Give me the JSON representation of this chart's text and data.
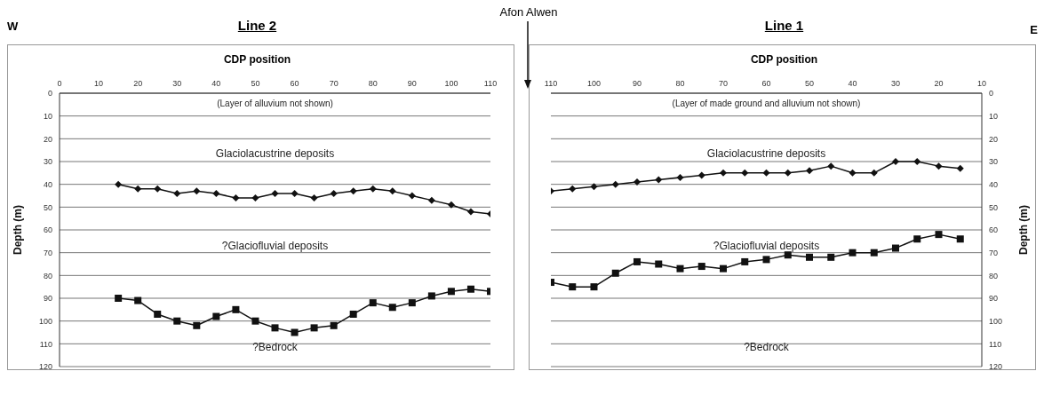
{
  "chart_data": [
    {
      "type": "line",
      "title": "Line 2",
      "xlabel": "CDP position",
      "ylabel": "Depth (m)",
      "xlim": [
        0,
        110
      ],
      "xticks": [
        0,
        10,
        20,
        30,
        40,
        50,
        60,
        70,
        80,
        90,
        100,
        110
      ],
      "ylim": [
        120,
        0
      ],
      "yticks": [
        0,
        10,
        20,
        30,
        40,
        50,
        60,
        70,
        80,
        90,
        100,
        110,
        120
      ],
      "grid": "y",
      "legend": false,
      "line_style": "solid",
      "x": [
        15,
        20,
        25,
        30,
        35,
        40,
        45,
        50,
        55,
        60,
        65,
        70,
        75,
        80,
        85,
        90,
        95,
        100,
        105,
        110
      ],
      "series": [
        {
          "color": "#111111",
          "marker": "diamond",
          "values": [
            40,
            42,
            42,
            44,
            43,
            44,
            46,
            46,
            44,
            44,
            46,
            44,
            43,
            42,
            43,
            45,
            47,
            49,
            52,
            53
          ]
        },
        {
          "color": "#111111",
          "marker": "square",
          "values": [
            90,
            91,
            97,
            100,
            102,
            98,
            95,
            100,
            103,
            105,
            103,
            102,
            97,
            92,
            94,
            92,
            89,
            87,
            86,
            87
          ]
        }
      ],
      "annotations": [
        "W",
        "Afon Alwen",
        "(Layer of alluvium not shown)",
        "Glaciolacustrine deposits",
        "?Glaciofluvial deposits",
        "?Bedrock"
      ]
    },
    {
      "type": "line",
      "title": "Line 1",
      "xlabel": "CDP position",
      "y2label": "Depth (m)",
      "xlim": [
        110,
        10
      ],
      "xticks": [
        110,
        100,
        90,
        80,
        70,
        60,
        50,
        40,
        30,
        20,
        10
      ],
      "y2lim": [
        120,
        0
      ],
      "y2ticks": [
        0,
        10,
        20,
        30,
        40,
        50,
        60,
        70,
        80,
        90,
        100,
        110,
        120
      ],
      "grid": "y",
      "legend": false,
      "line_style": "solid",
      "x": [
        110,
        105,
        100,
        95,
        90,
        85,
        80,
        75,
        70,
        65,
        60,
        55,
        50,
        45,
        40,
        35,
        30,
        25,
        20,
        15
      ],
      "series": [
        {
          "color": "#111111",
          "marker": "diamond",
          "axis": "y2",
          "values": [
            43,
            42,
            41,
            40,
            39,
            38,
            37,
            36,
            35,
            35,
            35,
            35,
            34,
            32,
            35,
            35,
            30,
            30,
            32,
            33
          ]
        },
        {
          "color": "#111111",
          "marker": "square",
          "axis": "y2",
          "values": [
            83,
            85,
            85,
            79,
            74,
            75,
            77,
            76,
            77,
            74,
            73,
            71,
            72,
            72,
            70,
            70,
            68,
            64,
            62,
            64
          ]
        }
      ],
      "annotations": [
        "E",
        "(Layer of made ground and alluvium not shown)",
        "Glaciolacustrine deposits",
        "?Glaciofluvial deposits",
        "?Bedrock"
      ]
    }
  ]
}
